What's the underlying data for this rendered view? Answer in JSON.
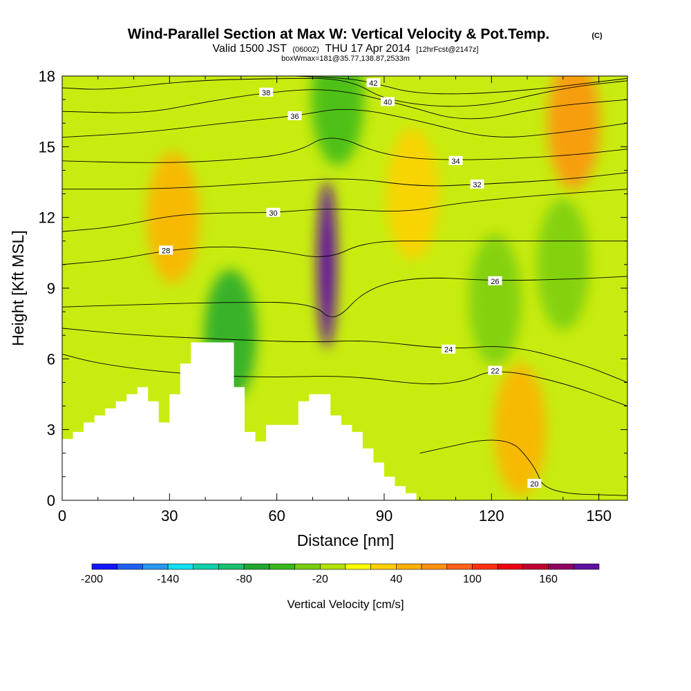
{
  "header": {
    "title": "Wind-Parallel Section at Max W: Vertical Velocity & Pot.Temp.",
    "title_mark": "(C)",
    "valid_prefix": "Valid 1500 JST",
    "valid_utc": "(0600Z)",
    "valid_date": "THU 17 Apr 2014",
    "forecast": "[12hrFcst@2147z]",
    "box_info": "boxWmax=181@35.77,138.87,2533m"
  },
  "chart_data": {
    "type": "heatmap",
    "xlabel": "Distance [nm]",
    "ylabel": "Height [Kft MSL]",
    "xlim": [
      0,
      158
    ],
    "ylim": [
      0,
      18
    ],
    "x_ticks": [
      "0",
      "30",
      "60",
      "90",
      "120",
      "150"
    ],
    "y_ticks": [
      "0",
      "3",
      "6",
      "9",
      "12",
      "15",
      "18"
    ],
    "background_field": "Vertical Velocity [cm/s]",
    "colorbar": {
      "title": "Vertical Velocity [cm/s]",
      "tick_labels": [
        "-200",
        "-140",
        "-80",
        "-20",
        "40",
        "100",
        "160"
      ],
      "colors": [
        "#1414ff",
        "#2060f0",
        "#2898f0",
        "#10e0f0",
        "#10d0a8",
        "#18c070",
        "#20a830",
        "#38b818",
        "#78cc10",
        "#b4e000",
        "#ffff00",
        "#ffd000",
        "#ffb000",
        "#ff9010",
        "#ff6018",
        "#ff3010",
        "#ee0010",
        "#c00030",
        "#900060",
        "#6010a0"
      ]
    },
    "terrain_profile": {
      "x": [
        0,
        3,
        6,
        9,
        12,
        15,
        18,
        21,
        24,
        27,
        30,
        33,
        36,
        39,
        42,
        45,
        48,
        51,
        54,
        57,
        60,
        63,
        66,
        69,
        72,
        75,
        78,
        81,
        84,
        87,
        90,
        93,
        96,
        99,
        102,
        158
      ],
      "height": [
        2.6,
        2.9,
        3.3,
        3.6,
        3.9,
        4.2,
        4.5,
        4.8,
        4.2,
        3.3,
        4.5,
        5.8,
        6.7,
        6.7,
        6.7,
        6.7,
        4.8,
        2.9,
        2.5,
        3.2,
        3.2,
        3.2,
        4.2,
        4.5,
        4.5,
        3.6,
        3.2,
        2.9,
        2.2,
        1.6,
        1.0,
        0.6,
        0.3,
        0.0,
        0.0,
        0.0
      ]
    },
    "velocity_features": [
      {
        "x": 74,
        "height": 10.0,
        "value": 181
      },
      {
        "x": 77,
        "height": 17.0,
        "value": -60
      },
      {
        "x": 47,
        "height": 7.0,
        "value": -80
      },
      {
        "x": 31,
        "height": 12.0,
        "value": 50
      },
      {
        "x": 98,
        "height": 13.0,
        "value": 25
      },
      {
        "x": 121,
        "height": 8.5,
        "value": -30
      },
      {
        "x": 140,
        "height": 10.0,
        "value": -30
      },
      {
        "x": 143,
        "height": 16.0,
        "value": 60
      },
      {
        "x": 128,
        "height": 3.0,
        "value": 40
      }
    ],
    "contours": [
      {
        "label": "20",
        "label_x": 132,
        "label_y": 0.7,
        "x": [
          100,
          124,
          132,
          135,
          158
        ],
        "y": [
          2.0,
          2.8,
          1.5,
          0.3,
          0.2
        ]
      },
      {
        "label": "22",
        "label_x": 121,
        "label_y": 5.5,
        "x": [
          0,
          10,
          30,
          55,
          80,
          100,
          112,
          121,
          140,
          158
        ],
        "y": [
          6.2,
          5.8,
          5.4,
          5.2,
          5.3,
          4.9,
          5.0,
          5.6,
          5.0,
          4.0
        ]
      },
      {
        "label": "24",
        "label_x": 108,
        "label_y": 6.4,
        "x": [
          0,
          20,
          50,
          70,
          85,
          108,
          125,
          145,
          158
        ],
        "y": [
          7.3,
          7.0,
          6.8,
          6.7,
          6.8,
          6.4,
          6.6,
          5.8,
          5.0
        ]
      },
      {
        "label": "26",
        "label_x": 121,
        "label_y": 9.3,
        "x": [
          0,
          20,
          45,
          70,
          76,
          85,
          100,
          121,
          145,
          158
        ],
        "y": [
          8.2,
          8.3,
          8.4,
          8.4,
          7.5,
          9.0,
          9.5,
          9.3,
          9.4,
          9.5
        ]
      },
      {
        "label": "28",
        "label_x": 29,
        "label_y": 10.6,
        "x": [
          0,
          15,
          29,
          45,
          60,
          74,
          85,
          105,
          121,
          158
        ],
        "y": [
          10.0,
          10.2,
          10.6,
          10.8,
          10.6,
          10.2,
          11.0,
          11.0,
          11.0,
          11.0
        ]
      },
      {
        "label": "30",
        "label_x": 59,
        "label_y": 12.2,
        "x": [
          0,
          15,
          31,
          45,
          59,
          75,
          95,
          110,
          130,
          158
        ],
        "y": [
          11.4,
          11.6,
          12.1,
          12.2,
          12.2,
          12.4,
          12.2,
          12.6,
          12.9,
          13.2
        ]
      },
      {
        "label": "32",
        "label_x": 116,
        "label_y": 13.4,
        "x": [
          0,
          22,
          40,
          59,
          80,
          100,
          116,
          140,
          158
        ],
        "y": [
          13.2,
          13.2,
          13.3,
          13.5,
          13.7,
          13.3,
          13.4,
          13.6,
          13.9
        ]
      },
      {
        "label": "34",
        "label_x": 110,
        "label_y": 14.4,
        "x": [
          0,
          25,
          45,
          65,
          75,
          90,
          110,
          140,
          158
        ],
        "y": [
          14.4,
          14.3,
          14.4,
          14.7,
          15.6,
          14.6,
          14.4,
          14.6,
          14.9
        ]
      },
      {
        "label": "36",
        "label_x": 65,
        "label_y": 16.3,
        "x": [
          0,
          23,
          45,
          65,
          80,
          100,
          120,
          140,
          158
        ],
        "y": [
          15.4,
          15.6,
          16.0,
          16.3,
          16.7,
          16.1,
          15.3,
          15.6,
          16.0
        ]
      },
      {
        "label": "38",
        "label_x": 57,
        "label_y": 17.3,
        "x": [
          0,
          23,
          40,
          57,
          75,
          95,
          113,
          135,
          158
        ],
        "y": [
          16.5,
          16.4,
          16.9,
          17.3,
          17.5,
          16.8,
          16.0,
          16.7,
          17.0
        ]
      },
      {
        "label": "40",
        "label_x": 91,
        "label_y": 16.9,
        "x": [
          0,
          12,
          35,
          60,
          80,
          91,
          115,
          140,
          158
        ],
        "y": [
          17.5,
          17.4,
          17.8,
          17.9,
          17.9,
          16.9,
          16.6,
          17.5,
          17.8
        ]
      },
      {
        "label": "42",
        "label_x": 87,
        "label_y": 17.7,
        "x": [
          65,
          80,
          87,
          100,
          125,
          158
        ],
        "y": [
          18.0,
          17.9,
          17.7,
          17.2,
          17.3,
          17.9
        ]
      }
    ]
  }
}
